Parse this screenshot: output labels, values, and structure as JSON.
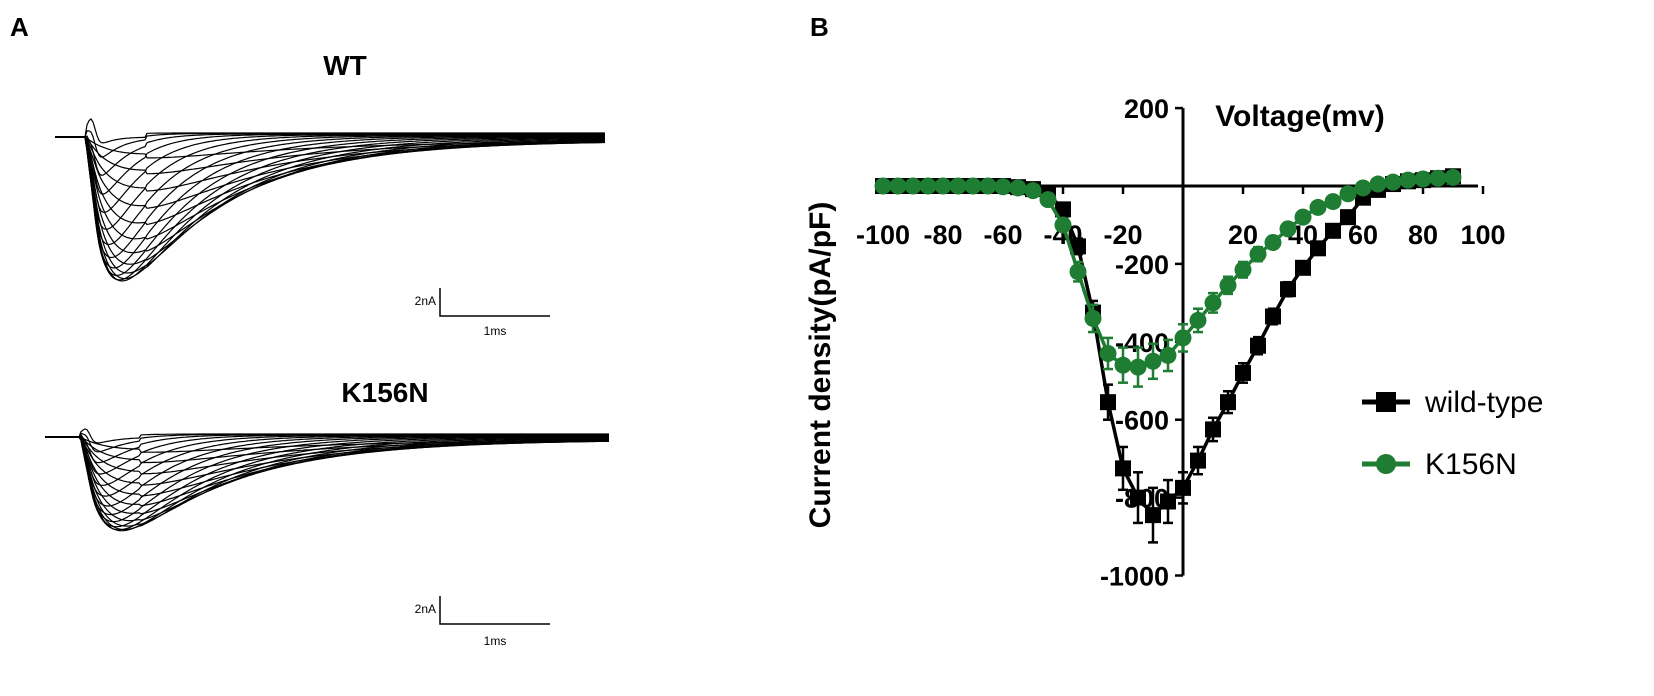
{
  "panels": {
    "a_label": "A",
    "b_label": "B"
  },
  "traces": {
    "wt_title": "WT",
    "mut_title": "K156N",
    "scale_current": "2nA",
    "scale_time": "1ms"
  },
  "colors": {
    "wild_type": "#000000",
    "k156n": "#1e7d32"
  },
  "chart_data": {
    "type": "line",
    "xlabel": "Voltage(mv)",
    "ylabel": "Current density(pA/pF)",
    "xlim": [
      -100,
      100
    ],
    "ylim": [
      -1000,
      200
    ],
    "x_ticks": [
      -100,
      -80,
      -60,
      "-40",
      -20,
      20,
      40,
      60,
      80,
      100
    ],
    "x_tick_labels": [
      "-100",
      "-80",
      "-60",
      "-40",
      "-20",
      "20",
      "40",
      "60",
      "80",
      "100"
    ],
    "y_ticks": [
      200,
      -200,
      -400,
      -600,
      -800,
      -1000
    ],
    "y_tick_labels": [
      "200",
      "-200",
      "-400",
      "-600",
      "-800",
      "-1000"
    ],
    "legend_position": "right",
    "series": [
      {
        "name": "wild-type",
        "marker": "square",
        "x": [
          -100,
          -95,
          -90,
          -85,
          -80,
          -75,
          -70,
          -65,
          -60,
          -55,
          -50,
          -45,
          -40,
          -35,
          -30,
          -25,
          -20,
          -15,
          -10,
          -5,
          0,
          5,
          10,
          15,
          20,
          25,
          30,
          35,
          40,
          45,
          50,
          55,
          60,
          65,
          70,
          75,
          80,
          85,
          90
        ],
        "y": [
          0,
          0,
          0,
          0,
          0,
          0,
          0,
          0,
          0,
          -3,
          -8,
          -20,
          -60,
          -155,
          -325,
          -555,
          -725,
          -800,
          -845,
          -810,
          -775,
          -705,
          -625,
          -555,
          -480,
          -410,
          -335,
          -265,
          -210,
          -160,
          -115,
          -80,
          -30,
          -10,
          5,
          12,
          15,
          20,
          25
        ],
        "err": [
          0,
          0,
          0,
          0,
          0,
          0,
          0,
          0,
          0,
          1,
          2,
          5,
          10,
          20,
          30,
          45,
          55,
          65,
          70,
          55,
          40,
          35,
          30,
          28,
          25,
          22,
          20,
          18,
          15,
          12,
          10,
          8,
          6,
          5,
          4,
          4,
          4,
          4,
          4
        ]
      },
      {
        "name": "K156N",
        "marker": "circle",
        "x": [
          -100,
          -95,
          -90,
          -85,
          -80,
          -75,
          -70,
          -65,
          -60,
          -55,
          -50,
          -45,
          -40,
          -35,
          -30,
          -25,
          -20,
          -15,
          -10,
          -5,
          0,
          5,
          10,
          15,
          20,
          25,
          30,
          35,
          40,
          45,
          50,
          55,
          60,
          65,
          70,
          75,
          80,
          85,
          90
        ],
        "y": [
          0,
          0,
          0,
          0,
          0,
          0,
          0,
          0,
          -2,
          -5,
          -12,
          -35,
          -100,
          -220,
          -340,
          -430,
          -460,
          -465,
          -450,
          -435,
          -390,
          -345,
          -300,
          -255,
          -215,
          -175,
          -145,
          -110,
          -80,
          -55,
          -40,
          -20,
          -5,
          5,
          10,
          15,
          18,
          20,
          22
        ],
        "err": [
          0,
          0,
          0,
          0,
          0,
          0,
          0,
          0,
          1,
          2,
          3,
          6,
          15,
          25,
          35,
          40,
          45,
          50,
          45,
          40,
          35,
          30,
          25,
          22,
          20,
          18,
          15,
          12,
          10,
          8,
          6,
          5,
          4,
          4,
          4,
          4,
          4,
          4,
          4
        ]
      }
    ]
  }
}
